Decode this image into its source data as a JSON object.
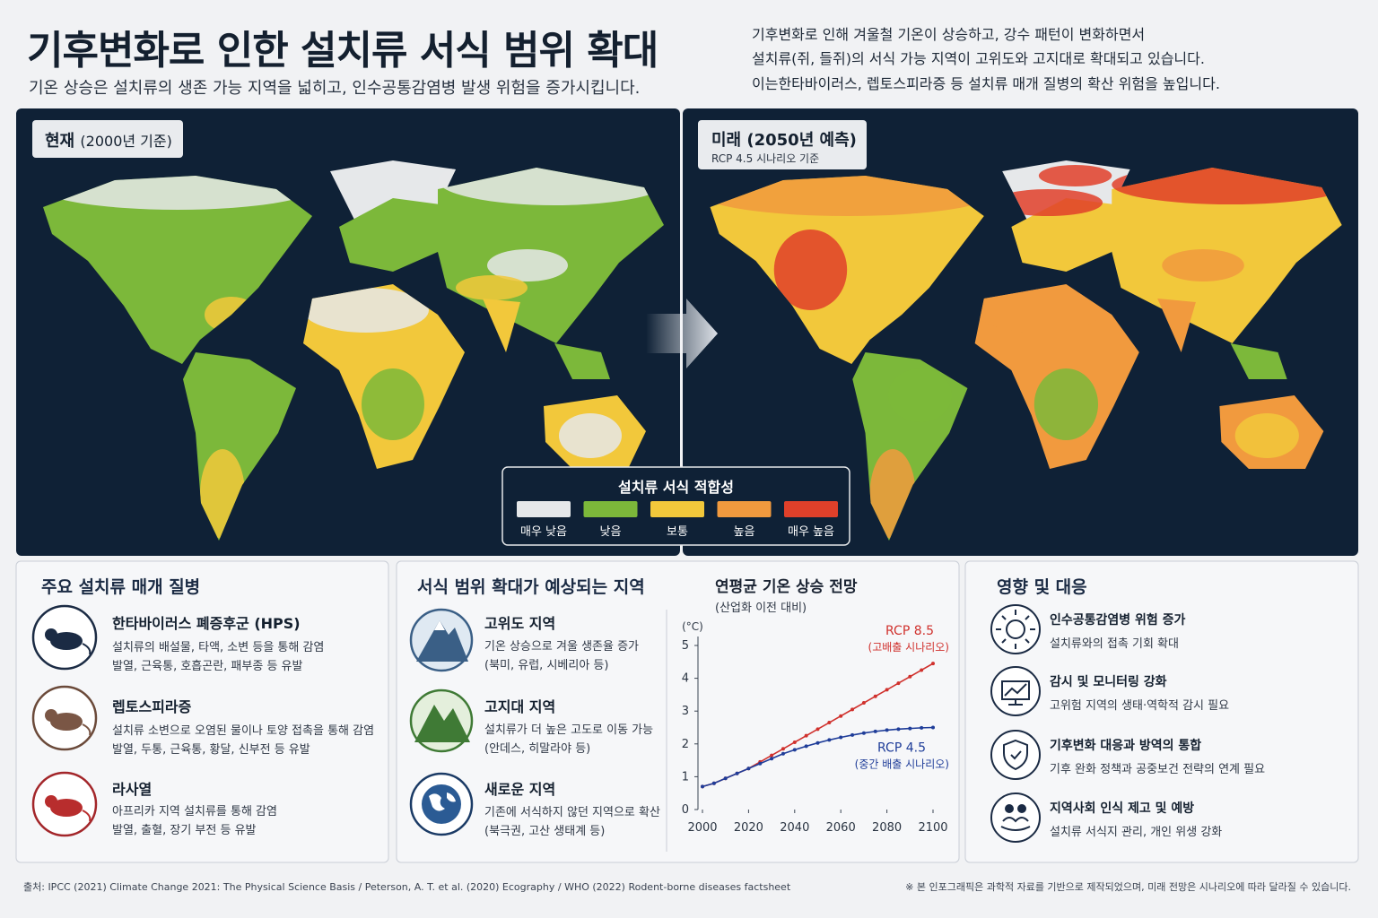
{
  "header": {
    "title": "기후변화로 인한 설치류 서식 범위 확대",
    "subtitle": "기온 상승은 설치류의 생존 가능 지역을 넓히고, 인수공통감염병 발생 위험을 증가시킵니다.",
    "description": [
      "기후변화로 인해 겨울철 기온이 상승하고, 강수 패턴이 변화하면서",
      "설치류(쥐, 들쥐)의 서식 가능 지역이 고위도와 고지대로 확대되고 있습니다.",
      "이는한타바이러스, 렙토스피라증 등 설치류 매개 질병의 확산 위험을 높입니다."
    ]
  },
  "maps": {
    "current": {
      "title": "현재",
      "note": "(2000년 기준)"
    },
    "future": {
      "title": "미래 (2050년 예측)",
      "note": "RCP 4.5 시나리오 기준"
    },
    "legend": {
      "title": "설치류 서식 적합성",
      "items": [
        {
          "label": "매우 낮음",
          "color": "#e6e8ea"
        },
        {
          "label": "낮음",
          "color": "#7cb83a"
        },
        {
          "label": "보통",
          "color": "#f2c83b"
        },
        {
          "label": "높음",
          "color": "#f19a3e"
        },
        {
          "label": "매우 높음",
          "color": "#e0402a"
        }
      ]
    }
  },
  "diseases": {
    "title": "주요 설치류 매개 질병",
    "items": [
      {
        "name": "한타바이러스 폐증후군 (HPS)",
        "lines": [
          "설치류의 배설물, 타액, 소변 등을 통해 감염",
          "발열, 근육통, 호흡곤란, 패부종 등 유발"
        ]
      },
      {
        "name": "렙토스피라증",
        "lines": [
          "설치류 소변으로 오염된 물이나 토양 접촉을 통해 감염",
          "발열, 두통, 근육통, 황달, 신부전 등 유발"
        ]
      },
      {
        "name": "라사열",
        "lines": [
          "아프리카 지역 설치류를 통해 감염",
          "발열, 출혈, 장기 부전 등 유발"
        ]
      }
    ]
  },
  "regions": {
    "title": "서식 범위 확대가 예상되는 지역",
    "items": [
      {
        "name": "고위도 지역",
        "lines": [
          "기온 상승으로 겨울 생존율 증가",
          "(북미, 유럽, 시베리아 등)"
        ]
      },
      {
        "name": "고지대 지역",
        "lines": [
          "설치류가 더 높은 고도로 이동 가능",
          "(안데스, 히말라야 등)"
        ]
      },
      {
        "name": "새로운 지역",
        "lines": [
          "기존에 서식하지 않던 지역으로 확산",
          "(북극권, 고산 생태계 등)"
        ]
      }
    ]
  },
  "chart_data": {
    "type": "line",
    "title": "연평균 기온 상승 전망",
    "subtitle": "(산업화 이전 대비)",
    "y_label": "(°C)",
    "x": [
      2000,
      2005,
      2010,
      2015,
      2020,
      2025,
      2030,
      2035,
      2040,
      2045,
      2050,
      2055,
      2060,
      2065,
      2070,
      2075,
      2080,
      2085,
      2090,
      2095,
      2100
    ],
    "series": [
      {
        "name": "RCP 8.5",
        "annotation": "(고배출 시나리오)",
        "color": "#d0312d",
        "values": [
          0.7,
          0.8,
          0.95,
          1.1,
          1.25,
          1.45,
          1.65,
          1.85,
          2.05,
          2.25,
          2.45,
          2.65,
          2.85,
          3.05,
          3.25,
          3.45,
          3.65,
          3.85,
          4.05,
          4.25,
          4.45
        ]
      },
      {
        "name": "RCP 4.5",
        "annotation": "(중간 배출 시나리오)",
        "color": "#1f3d99",
        "values": [
          0.7,
          0.8,
          0.95,
          1.1,
          1.25,
          1.4,
          1.55,
          1.7,
          1.82,
          1.93,
          2.03,
          2.12,
          2.2,
          2.27,
          2.33,
          2.38,
          2.42,
          2.45,
          2.47,
          2.49,
          2.5
        ]
      }
    ],
    "xlim": [
      2000,
      2100
    ],
    "ylim": [
      0,
      5
    ],
    "xticks": [
      2000,
      2020,
      2040,
      2060,
      2080,
      2100
    ],
    "yticks": [
      0,
      1,
      2,
      3,
      4,
      5
    ]
  },
  "impacts": {
    "title": "영향 및 대응",
    "items": [
      {
        "name": "인수공통감염병 위험 증가",
        "line": "설치류와의 접촉 기회 확대"
      },
      {
        "name": "감시 및 모니터링 강화",
        "line": "고위험 지역의 생태·역학적 감시 필요"
      },
      {
        "name": "기후변화 대응과 방역의 통합",
        "line": "기후 완화 정책과 공중보건 전략의 연계 필요"
      },
      {
        "name": "지역사회 인식 제고 및 예방",
        "line": "설치류 서식지 관리, 개인 위생 강화"
      }
    ]
  },
  "footer": {
    "source": "출처: IPCC (2021) Climate Change 2021: The Physical Science Basis / Peterson, A. T. et al. (2020) Ecography / WHO (2022) Rodent-borne diseases factsheet",
    "note": "※ 본 인포그래픽은 과학적 자료를 기반으로 제작되었으며, 미래 전망은 시나리오에 따라 달라질 수 있습니다."
  }
}
